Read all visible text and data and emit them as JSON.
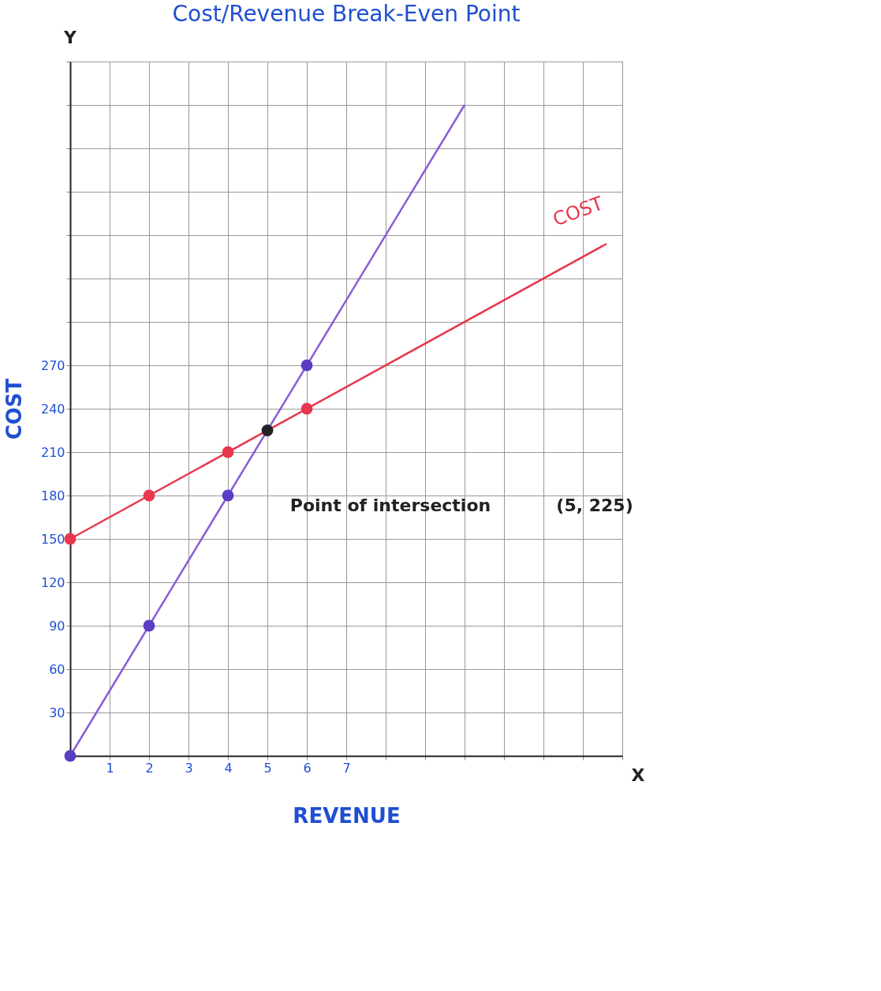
{
  "chart_data": {
    "type": "line",
    "title": "Cost/Revenue Break-Even Point",
    "xlabel": "REVENUE",
    "ylabel": "COST",
    "xlim": [
      0,
      14
    ],
    "ylim": [
      0,
      480
    ],
    "xticks": [
      {
        "value": 0,
        "label": null
      },
      1,
      2,
      3,
      4,
      5,
      6,
      7,
      {
        "value": 8,
        "label": null
      },
      {
        "value": 9,
        "label": null
      },
      {
        "value": 10,
        "label": null
      },
      {
        "value": 11,
        "label": null
      },
      {
        "value": 12,
        "label": null
      },
      {
        "value": 13,
        "label": null
      },
      {
        "value": 14,
        "label": null
      }
    ],
    "yticks": [
      {
        "value": 0,
        "label": null
      },
      30,
      60,
      90,
      120,
      150,
      180,
      210,
      240,
      270,
      {
        "value": 300,
        "label": null
      },
      {
        "value": 330,
        "label": null
      },
      {
        "value": 360,
        "label": null
      },
      {
        "value": 390,
        "label": null
      },
      {
        "value": 420,
        "label": null
      },
      {
        "value": 450,
        "label": null
      },
      {
        "value": 480,
        "label": null
      }
    ],
    "grid": true,
    "series": [
      {
        "color": "#8a5cd8",
        "x": [
          0,
          10
        ],
        "values": [
          0,
          450
        ],
        "marker": "none"
      },
      {
        "name": "COST",
        "color": "#e8374f",
        "x": [
          0,
          13.6
        ],
        "values": [
          150,
          354
        ],
        "marker": "none"
      },
      {
        "type": "scatter",
        "color": "#5b3cc4",
        "x": [
          0,
          2,
          4,
          6
        ],
        "values": [
          0,
          90,
          180,
          270
        ],
        "marker": "circle"
      },
      {
        "type": "scatter",
        "color": "#e8374f",
        "x": [
          0,
          2,
          4,
          6
        ],
        "values": [
          150,
          180,
          210,
          240
        ],
        "marker": "circle"
      },
      {
        "type": "scatter",
        "color": "#222222",
        "x": [
          5
        ],
        "values": [
          225
        ],
        "marker": "circle"
      }
    ],
    "annotations": [
      "Y",
      "X",
      "Point of intersection",
      "(5, 225)"
    ]
  }
}
